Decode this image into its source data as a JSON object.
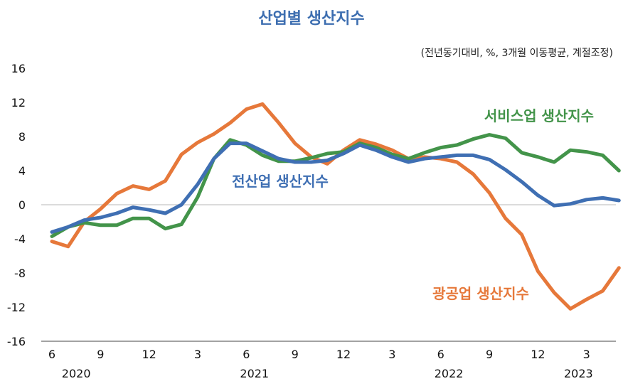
{
  "chart_data": {
    "type": "line",
    "title": "산업별 생산지수",
    "subtitle": "(전년동기대비, %, 3개월 이동평균, 계절조정)",
    "ylim": [
      -16,
      16
    ],
    "yticks": [
      "16",
      "12",
      "8",
      "4",
      "0",
      "-4",
      "-8",
      "-12",
      "-16"
    ],
    "x_tick_labels": [
      "6",
      "9",
      "12",
      "3",
      "6",
      "9",
      "12",
      "3",
      "6",
      "9",
      "12",
      "3"
    ],
    "year_labels": [
      "2020",
      "2021",
      "2022",
      "2023"
    ],
    "x": [
      "2020-06",
      "2020-07",
      "2020-08",
      "2020-09",
      "2020-10",
      "2020-11",
      "2020-12",
      "2021-01",
      "2021-02",
      "2021-03",
      "2021-04",
      "2021-05",
      "2021-06",
      "2021-07",
      "2021-08",
      "2021-09",
      "2021-10",
      "2021-11",
      "2021-12",
      "2022-01",
      "2022-02",
      "2022-03",
      "2022-04",
      "2022-05",
      "2022-06",
      "2022-07",
      "2022-08",
      "2022-09",
      "2022-10",
      "2022-11",
      "2022-12",
      "2023-01",
      "2023-02",
      "2023-03",
      "2023-04",
      "2023-05"
    ],
    "zero_line": true,
    "series": [
      {
        "name": "전산업 생산지수",
        "color": "#3f6fb3",
        "values": [
          -3.2,
          -2.6,
          -1.8,
          -1.5,
          -1.0,
          -0.3,
          -0.6,
          -1.0,
          0.0,
          2.4,
          5.4,
          7.2,
          7.2,
          6.3,
          5.4,
          5.0,
          5.0,
          5.2,
          6.0,
          7.0,
          6.4,
          5.6,
          5.0,
          5.4,
          5.6,
          5.8,
          5.8,
          5.3,
          4.1,
          2.7,
          1.1,
          -0.1,
          0.1,
          0.6,
          0.8,
          0.5
        ]
      },
      {
        "name": "서비스업 생산지수",
        "color": "#43944a",
        "values": [
          -3.7,
          -2.6,
          -2.1,
          -2.4,
          -2.4,
          -1.6,
          -1.6,
          -2.8,
          -2.3,
          0.9,
          5.4,
          7.6,
          7.0,
          5.8,
          5.1,
          5.1,
          5.5,
          6.0,
          6.2,
          7.2,
          6.7,
          5.9,
          5.4,
          6.1,
          6.7,
          7.0,
          7.7,
          8.2,
          7.8,
          6.1,
          5.6,
          5.0,
          6.4,
          6.2,
          5.8,
          4.0
        ]
      },
      {
        "name": "광공업 생산지수",
        "color": "#e6783a",
        "values": [
          -4.3,
          -4.9,
          -2.0,
          -0.5,
          1.3,
          2.2,
          1.8,
          2.8,
          5.9,
          7.3,
          8.3,
          9.6,
          11.2,
          11.8,
          9.6,
          7.2,
          5.6,
          4.8,
          6.4,
          7.6,
          7.1,
          6.4,
          5.4,
          5.6,
          5.4,
          5.0,
          3.6,
          1.4,
          -1.6,
          -3.5,
          -7.8,
          -10.3,
          -12.2,
          -11.1,
          -10.1,
          -7.4
        ]
      }
    ]
  }
}
